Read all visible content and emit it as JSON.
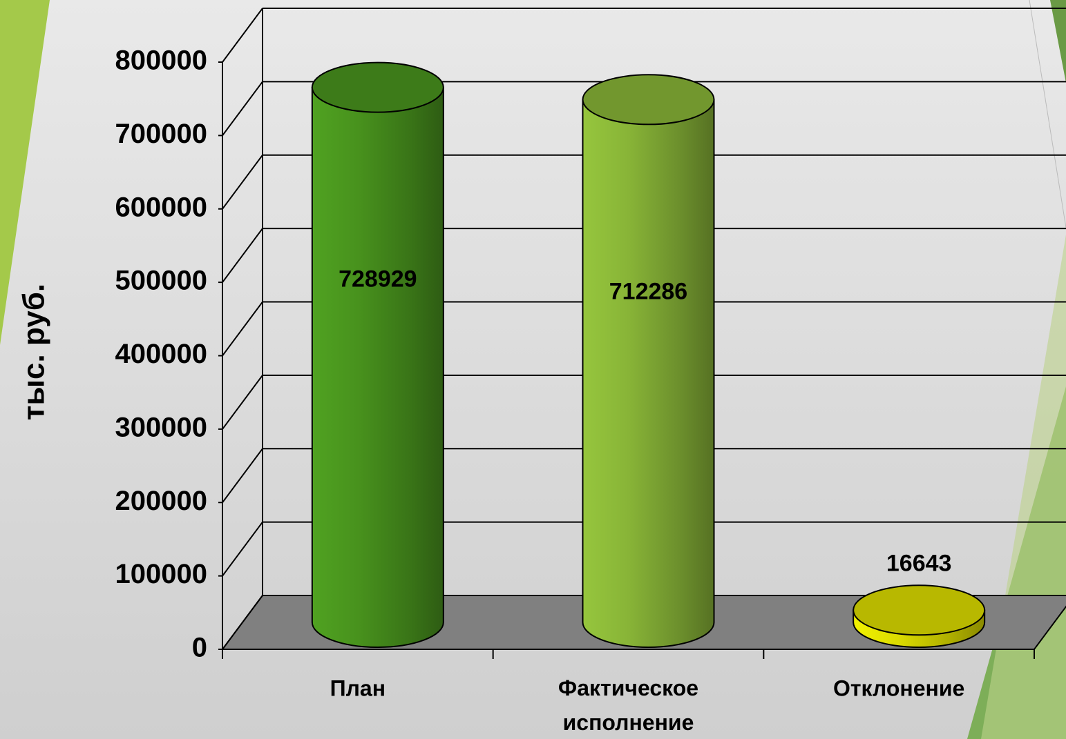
{
  "chart_data": {
    "type": "cylinder",
    "categories": [
      "План",
      "Фактическое исполнение",
      "Отклонение"
    ],
    "values": [
      728929,
      712286,
      16643
    ],
    "colors": [
      "#4c9a1f",
      "#8fbd3a",
      "#e6e600"
    ],
    "ylabel": "тыс. руб.",
    "ylim": [
      0,
      800000
    ],
    "yticks": [
      0,
      100000,
      200000,
      300000,
      400000,
      500000,
      600000,
      700000,
      800000
    ],
    "grid": true
  }
}
